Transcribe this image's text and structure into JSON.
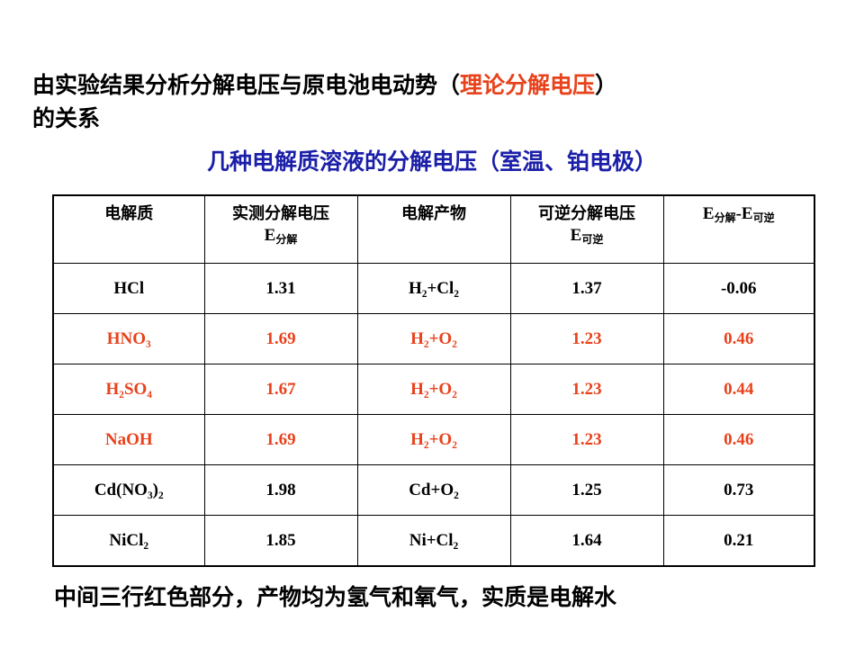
{
  "heading": {
    "text_before": "由实验结果分析分解电压与原电池电动势（",
    "highlight": "理论分解电压",
    "text_after": "）",
    "line2": "的关系"
  },
  "subtitle": "几种电解质溶液的分解电压（室温、铂电极）",
  "table": {
    "headers": {
      "electrolyte": "电解质",
      "measured": "实测分解电压",
      "measured_sym": "E",
      "measured_sub": "分解",
      "products": "电解产物",
      "reversible": "可逆分解电压",
      "reversible_sym": "E",
      "reversible_sub": "可逆",
      "diff_e1": "E",
      "diff_sub1": "分解",
      "diff_mid": "-E",
      "diff_sub2": "可逆"
    },
    "rows": [
      {
        "electrolyte": "HCl",
        "measured": "1.31",
        "products": "H₂+Cl₂",
        "reversible": "1.37",
        "diff": "-0.06"
      },
      {
        "electrolyte": "HNO₃",
        "measured": "1.69",
        "products": "H₂+O₂",
        "reversible": "1.23",
        "diff": "0.46"
      },
      {
        "electrolyte": "H₂SO₄",
        "measured": "1.67",
        "products": "H₂+O₂",
        "reversible": "1.23",
        "diff": "0.44"
      },
      {
        "electrolyte": "NaOH",
        "measured": "1.69",
        "products": "H₂+O₂",
        "reversible": "1.23",
        "diff": "0.46"
      },
      {
        "electrolyte": "Cd(NO₃)₂",
        "measured": "1.98",
        "products": "Cd+O₂",
        "reversible": "1.25",
        "diff": "0.73"
      },
      {
        "electrolyte": "NiCl₂",
        "measured": "1.85",
        "products": "Ni+Cl₂",
        "reversible": "1.64",
        "diff": "0.21"
      }
    ]
  },
  "footer": "中间三行红色部分，产物均为氢气和氧气，实质是电解水",
  "colors": {
    "accent_red": "#e8421c",
    "subtitle_blue": "#1b1fa8"
  }
}
